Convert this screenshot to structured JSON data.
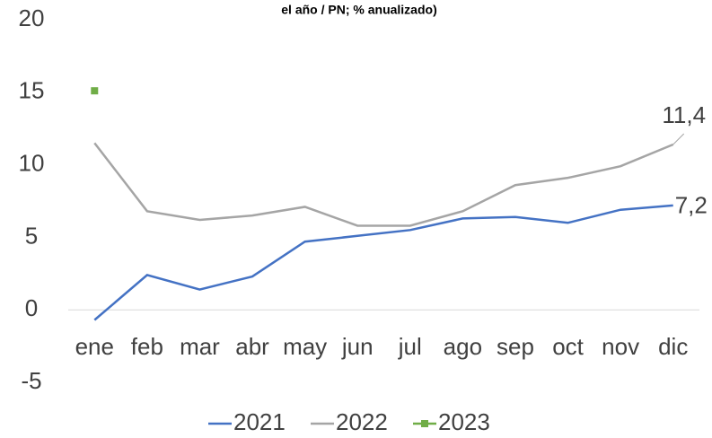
{
  "chart_data": {
    "type": "line",
    "title": "el año / PN; % anualizado)",
    "categories": [
      "ene",
      "feb",
      "mar",
      "abr",
      "may",
      "jun",
      "jul",
      "ago",
      "sep",
      "oct",
      "nov",
      "dic"
    ],
    "series": [
      {
        "name": "2021",
        "color": "#4472c4",
        "values": [
          -0.7,
          2.4,
          1.4,
          2.3,
          4.7,
          5.1,
          5.5,
          6.3,
          6.4,
          6.0,
          6.9,
          7.2
        ],
        "value_labels": [
          null,
          null,
          null,
          null,
          null,
          null,
          null,
          null,
          null,
          null,
          null,
          "7,2"
        ]
      },
      {
        "name": "2022",
        "color": "#a5a5a5",
        "values": [
          11.5,
          6.8,
          6.2,
          6.5,
          7.1,
          5.8,
          5.8,
          6.8,
          8.6,
          9.1,
          9.9,
          11.4
        ],
        "value_labels": [
          null,
          null,
          null,
          null,
          null,
          null,
          null,
          null,
          null,
          null,
          null,
          "11,4"
        ]
      },
      {
        "name": "2023",
        "color": "#70ad47",
        "values": [
          15.1,
          null,
          null,
          null,
          null,
          null,
          null,
          null,
          null,
          null,
          null,
          null
        ]
      }
    ],
    "ylim": [
      -5,
      20
    ],
    "yticks": [
      -5,
      0,
      5,
      10,
      15,
      20
    ],
    "grid": false
  }
}
